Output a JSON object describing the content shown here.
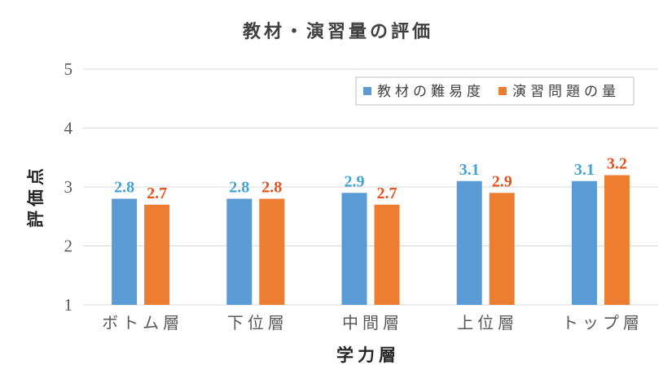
{
  "chart_data": {
    "type": "bar",
    "title": "教材・演習量の評価",
    "xlabel": "学力層",
    "ylabel": "評価点",
    "categories": [
      "ボトム層",
      "下位層",
      "中間層",
      "上位層",
      "トップ層"
    ],
    "series": [
      {
        "name": "教材の難易度",
        "values": [
          2.8,
          2.8,
          2.9,
          3.1,
          3.1
        ],
        "color": "#5B9BD5",
        "label_color": "#44A3D6"
      },
      {
        "name": "演習問題の量",
        "values": [
          2.7,
          2.8,
          2.7,
          2.9,
          3.2
        ],
        "color": "#ED7D31",
        "label_color": "#E5531C"
      }
    ],
    "ylim": [
      1,
      5
    ],
    "y_ticks": [
      1,
      2,
      3,
      4,
      5
    ],
    "grid": true,
    "legend_position": "top-right",
    "data_labels": true
  }
}
